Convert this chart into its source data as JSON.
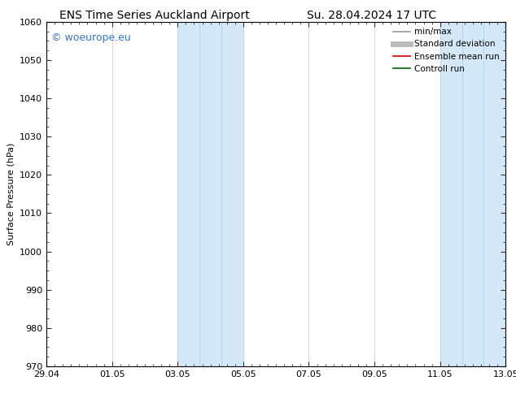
{
  "title_left": "ENS Time Series Auckland Airport",
  "title_right": "Su. 28.04.2024 17 UTC",
  "ylabel": "Surface Pressure (hPa)",
  "ylim": [
    970,
    1060
  ],
  "yticks": [
    970,
    980,
    990,
    1000,
    1010,
    1020,
    1030,
    1040,
    1050,
    1060
  ],
  "xlim": [
    0,
    14
  ],
  "xtick_labels": [
    "29.04",
    "01.05",
    "03.05",
    "05.05",
    "07.05",
    "09.05",
    "11.05",
    "13.05"
  ],
  "xtick_positions": [
    0,
    2,
    4,
    6,
    8,
    10,
    12,
    14
  ],
  "shading_bands": [
    {
      "x_start": 4.0,
      "x_end": 6.0
    },
    {
      "x_start": 12.0,
      "x_end": 14.0
    }
  ],
  "shading_dividers": [
    {
      "x_start": 4.0,
      "x_end": 6.0,
      "dividers": [
        4.67,
        5.33
      ]
    },
    {
      "x_start": 12.0,
      "x_end": 14.0,
      "dividers": [
        12.67,
        13.33
      ]
    }
  ],
  "shading_color": "#d4e8f7",
  "shading_alpha": 1.0,
  "divider_color": "#b8d5ed",
  "watermark_text": "© woeurope.eu",
  "watermark_color": "#3377cc",
  "legend_items": [
    {
      "label": "min/max",
      "color": "#999999",
      "lw": 1.2,
      "style": "solid"
    },
    {
      "label": "Standard deviation",
      "color": "#bbbbbb",
      "lw": 5,
      "style": "solid"
    },
    {
      "label": "Ensemble mean run",
      "color": "#cc0000",
      "lw": 1.2,
      "style": "solid"
    },
    {
      "label": "Controll run",
      "color": "#006600",
      "lw": 1.2,
      "style": "solid"
    }
  ],
  "bg_color": "#ffffff",
  "spine_color": "#000000",
  "tick_color": "#333333",
  "title_fontsize": 10,
  "axis_label_fontsize": 8,
  "tick_fontsize": 8,
  "legend_fontsize": 7.5,
  "watermark_fontsize": 9
}
